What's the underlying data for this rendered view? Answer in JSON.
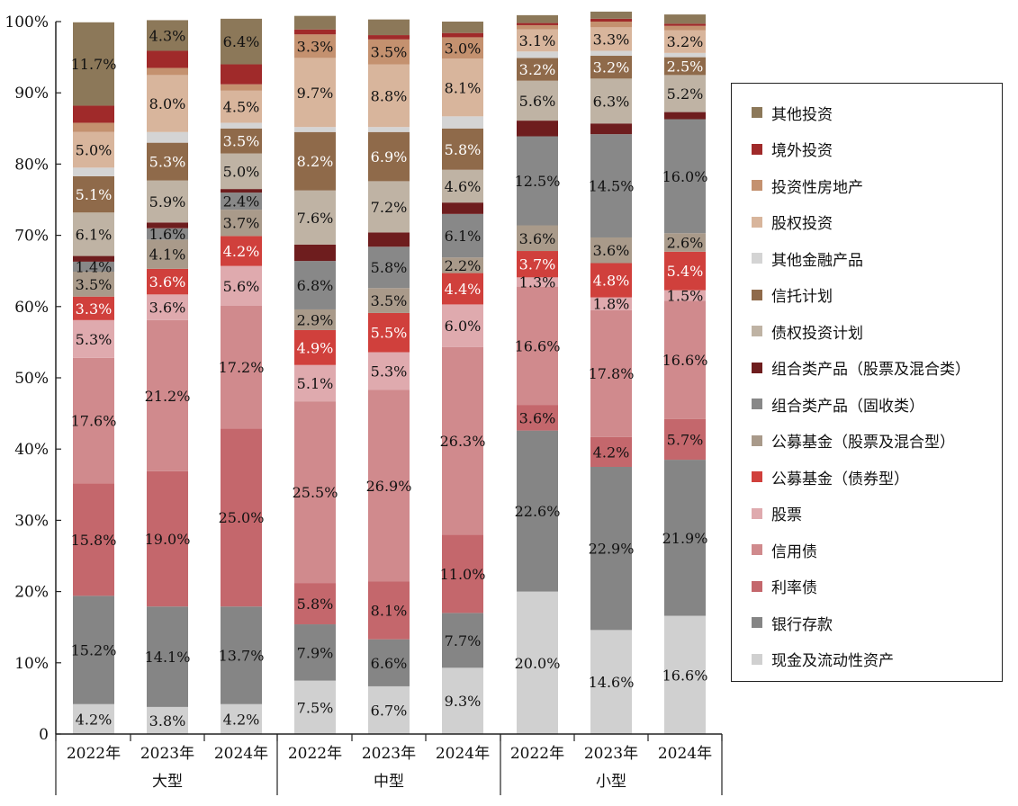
{
  "chart_data": {
    "type": "stacked-bar-100",
    "ylim": [
      0,
      100
    ],
    "yticks": [
      0,
      10,
      20,
      30,
      40,
      50,
      60,
      70,
      80,
      90,
      100
    ],
    "ytick_labels": [
      "0",
      "10%",
      "20%",
      "30%",
      "40%",
      "50%",
      "60%",
      "70%",
      "80%",
      "90%",
      "100%"
    ],
    "legend_position": "right",
    "groups": [
      {
        "label": "大型",
        "categories": [
          "2022年",
          "2023年",
          "2024年"
        ]
      },
      {
        "label": "中型",
        "categories": [
          "2022年",
          "2023年",
          "2024年"
        ]
      },
      {
        "label": "小型",
        "categories": [
          "2022年",
          "2023年",
          "2024年"
        ]
      }
    ],
    "series": [
      {
        "name": "现金及流动性资产",
        "color": "#d0d0d0",
        "label_color": "#111111",
        "values": [
          4.2,
          3.8,
          4.2,
          7.5,
          6.7,
          9.3,
          20.0,
          14.6,
          16.6
        ]
      },
      {
        "name": "银行存款",
        "color": "#858585",
        "label_color": "#111111",
        "values": [
          15.2,
          14.1,
          13.7,
          7.9,
          6.6,
          7.7,
          22.6,
          22.9,
          21.9
        ]
      },
      {
        "name": "利率债",
        "color": "#c4676c",
        "label_color": "#111111",
        "values": [
          15.8,
          19.0,
          25.0,
          5.8,
          8.1,
          11.0,
          3.6,
          4.2,
          5.7
        ]
      },
      {
        "name": "信用债",
        "color": "#d08a8d",
        "label_color": "#111111",
        "values": [
          17.6,
          21.2,
          17.2,
          25.5,
          26.9,
          26.3,
          16.6,
          17.8,
          16.6
        ]
      },
      {
        "name": "股票",
        "color": "#dfaaae",
        "label_color": "#111111",
        "values": [
          5.3,
          3.6,
          5.6,
          5.1,
          5.3,
          6.0,
          1.3,
          1.8,
          1.5
        ]
      },
      {
        "name": "公募基金（债券型）",
        "color": "#d0403c",
        "label_color": "#ffffff",
        "values": [
          3.3,
          3.6,
          4.2,
          4.9,
          5.5,
          4.4,
          3.7,
          4.8,
          5.4
        ]
      },
      {
        "name": "公募基金（股票及混合型）",
        "color": "#a99a8a",
        "label_color": "#111111",
        "values": [
          3.5,
          4.1,
          3.7,
          2.9,
          3.5,
          2.2,
          3.6,
          3.6,
          2.6
        ]
      },
      {
        "name": "组合类产品（固收类）",
        "color": "#888888",
        "label_color": "#111111",
        "values": [
          1.4,
          1.6,
          2.4,
          6.8,
          5.8,
          6.1,
          12.5,
          14.5,
          16.0
        ]
      },
      {
        "name": "组合类产品（股票及混合类）",
        "color": "#6e1d1e",
        "label_color": "#ffffff",
        "values": [
          0.8,
          0.8,
          0.5,
          2.3,
          2.0,
          1.6,
          2.2,
          1.5,
          1.0
        ]
      },
      {
        "name": "债权投资计划",
        "color": "#bfb3a4",
        "label_color": "#111111",
        "values": [
          6.1,
          5.9,
          5.0,
          7.6,
          7.2,
          4.6,
          5.6,
          6.3,
          5.2
        ]
      },
      {
        "name": "信托计划",
        "color": "#8f6a4a",
        "label_color": "#ffffff",
        "values": [
          5.1,
          5.3,
          3.5,
          8.2,
          6.9,
          5.8,
          3.2,
          3.2,
          2.5
        ]
      },
      {
        "name": "其他金融产品",
        "color": "#d4d4d4",
        "label_color": "#111111",
        "values": [
          1.2,
          1.5,
          0.8,
          0.7,
          0.7,
          1.7,
          0.9,
          0.7,
          0.6
        ]
      },
      {
        "name": "股权投资",
        "color": "#d8b59c",
        "label_color": "#111111",
        "values": [
          5.0,
          8.0,
          4.5,
          9.7,
          8.8,
          8.1,
          3.1,
          3.3,
          3.2
        ]
      },
      {
        "name": "投资性房地产",
        "color": "#c4916f",
        "label_color": "#111111",
        "values": [
          1.3,
          1.0,
          0.9,
          3.3,
          3.5,
          3.0,
          0.6,
          0.8,
          0.6
        ]
      },
      {
        "name": "境外投资",
        "color": "#a02a2a",
        "label_color": "#ffffff",
        "values": [
          2.4,
          2.4,
          2.8,
          0.7,
          0.6,
          0.6,
          0.3,
          0.4,
          0.3
        ]
      },
      {
        "name": "其他投资",
        "color": "#8c7859",
        "label_color": "#111111",
        "values": [
          11.7,
          4.3,
          6.4,
          1.9,
          2.2,
          1.6,
          1.1,
          1.0,
          1.3
        ]
      }
    ],
    "data_labels": [
      [
        "4.2%",
        "15.2%",
        "15.8%",
        "17.6%",
        "5.3%",
        "3.3%",
        "3.5%",
        "1.4%",
        "",
        "6.1%",
        "5.1%",
        "",
        "5.0%",
        "",
        "",
        "11.7%"
      ],
      [
        "3.8%",
        "14.1%",
        "19.0%",
        "21.2%",
        "3.6%",
        "3.6%",
        "4.1%",
        "1.6%",
        "",
        "5.9%",
        "5.3%",
        "",
        "8.0%",
        "",
        "",
        "4.3%"
      ],
      [
        "4.2%",
        "13.7%",
        "25.0%",
        "17.2%",
        "5.6%",
        "4.2%",
        "3.7%",
        "2.4%",
        "",
        "5.0%",
        "3.5%",
        "",
        "4.5%",
        "",
        "",
        "6.4%"
      ],
      [
        "7.5%",
        "7.9%",
        "5.8%",
        "25.5%",
        "5.1%",
        "4.9%",
        "2.9%",
        "6.8%",
        "",
        "7.6%",
        "8.2%",
        "",
        "9.7%",
        "3.3%",
        "",
        ""
      ],
      [
        "6.7%",
        "6.6%",
        "8.1%",
        "26.9%",
        "5.3%",
        "5.5%",
        "3.5%",
        "5.8%",
        "",
        "7.2%",
        "6.9%",
        "",
        "8.8%",
        "3.5%",
        "",
        ""
      ],
      [
        "9.3%",
        "7.7%",
        "11.0%",
        "26.3%",
        "6.0%",
        "4.4%",
        "2.2%",
        "6.1%",
        "",
        "4.6%",
        "5.8%",
        "",
        "8.1%",
        "3.0%",
        "",
        ""
      ],
      [
        "20.0%",
        "22.6%",
        "3.6%",
        "16.6%",
        "1.3%",
        "3.7%",
        "3.6%",
        "12.5%",
        "",
        "5.6%",
        "3.2%",
        "",
        "3.1%",
        "",
        "",
        ""
      ],
      [
        "14.6%",
        "22.9%",
        "4.2%",
        "17.8%",
        "1.8%",
        "4.8%",
        "3.6%",
        "14.5%",
        "",
        "6.3%",
        "3.2%",
        "",
        "3.3%",
        "",
        "",
        ""
      ],
      [
        "16.6%",
        "21.9%",
        "5.7%",
        "16.6%",
        "1.5%",
        "5.4%",
        "2.6%",
        "16.0%",
        "",
        "5.2%",
        "2.5%",
        "",
        "3.2%",
        "",
        "",
        ""
      ]
    ],
    "legend_order": [
      "其他投资",
      "境外投资",
      "投资性房地产",
      "股权投资",
      "其他金融产品",
      "信托计划",
      "债权投资计划",
      "组合类产品（股票及混合类）",
      "组合类产品（固收类）",
      "公募基金（股票及混合型）",
      "公募基金（债券型）",
      "股票",
      "信用债",
      "利率债",
      "银行存款",
      "现金及流动性资产"
    ]
  }
}
